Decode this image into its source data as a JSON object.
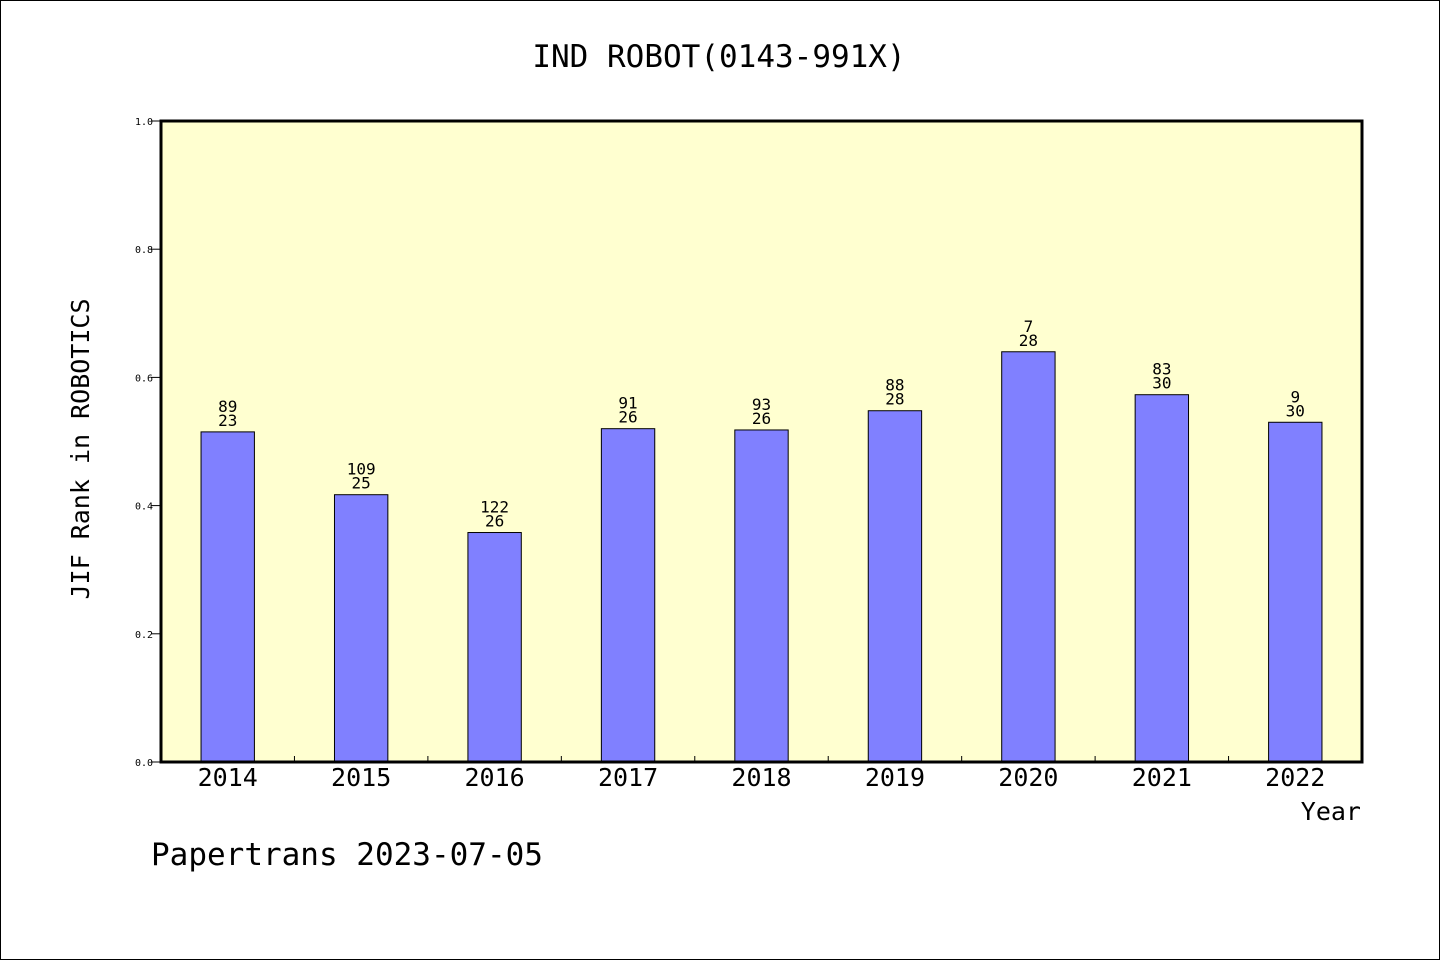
{
  "chart_data": {
    "type": "bar",
    "title": "IND ROBOT(0143-991X)",
    "xlabel": "Year",
    "ylabel": "JIF Rank in ROBOTICS",
    "ylim": [
      0,
      1.0
    ],
    "yticks": [
      "0.0",
      "0.2",
      "0.4",
      "0.6",
      "0.8",
      "1.0"
    ],
    "categories": [
      "2014",
      "2015",
      "2016",
      "2017",
      "2018",
      "2019",
      "2020",
      "2021",
      "2022"
    ],
    "values": [
      0.515,
      0.417,
      0.358,
      0.52,
      0.518,
      0.548,
      0.64,
      0.573,
      0.53
    ],
    "labels_top": [
      "89",
      "109",
      "122",
      "91",
      "93",
      "88",
      "7",
      "83",
      "9"
    ],
    "labels_bottom": [
      "23",
      "25",
      "26",
      "26",
      "26",
      "28",
      "28",
      "30",
      "30"
    ],
    "grid": false,
    "colors": {
      "plot_bg": "#FFFFD0",
      "bar": "#8080FF",
      "bar_edge": "#000000"
    }
  },
  "footer": "Papertrans 2023-07-05"
}
